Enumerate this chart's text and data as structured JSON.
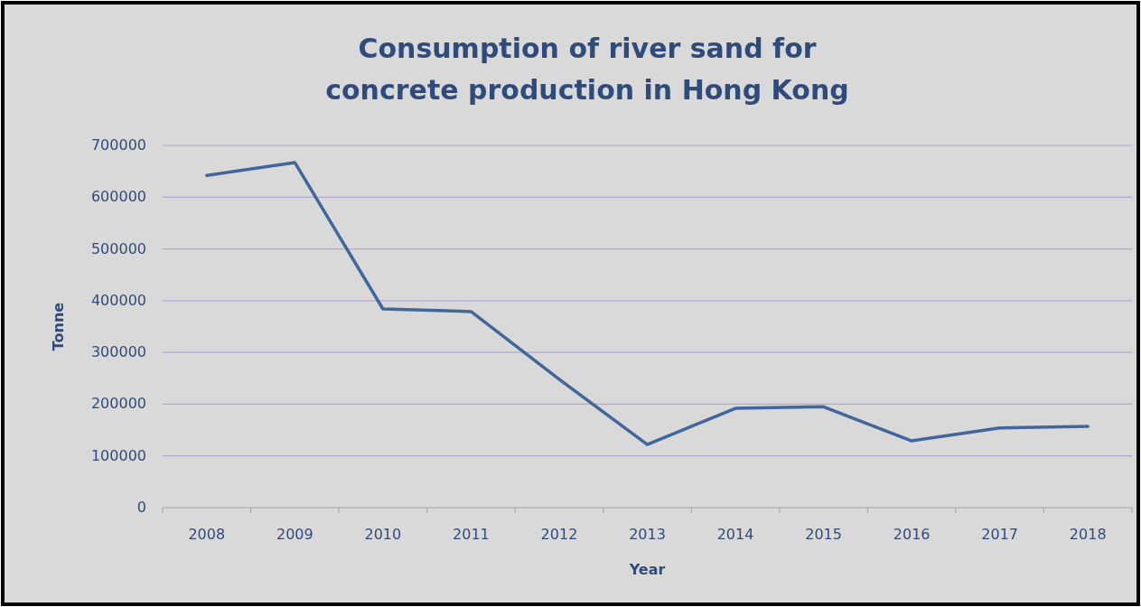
{
  "chart_data": {
    "type": "line",
    "title": "Consumption of river sand for concrete production in Hong Kong",
    "xlabel": "Year",
    "ylabel": "Tonne",
    "categories": [
      "2008",
      "2009",
      "2010",
      "2011",
      "2012",
      "2013",
      "2014",
      "2015",
      "2016",
      "2017",
      "2018"
    ],
    "series": [
      {
        "color": "#41669a",
        "values": [
          642000,
          667000,
          384000,
          379000,
          248000,
          122000,
          192000,
          195000,
          129000,
          154000,
          157000
        ]
      }
    ],
    "ylim": [
      0,
      700000
    ],
    "yticks": [
      0,
      100000,
      200000,
      300000,
      400000,
      500000,
      600000,
      700000
    ],
    "grid": "y",
    "marker": "none",
    "line_style": "solid"
  }
}
